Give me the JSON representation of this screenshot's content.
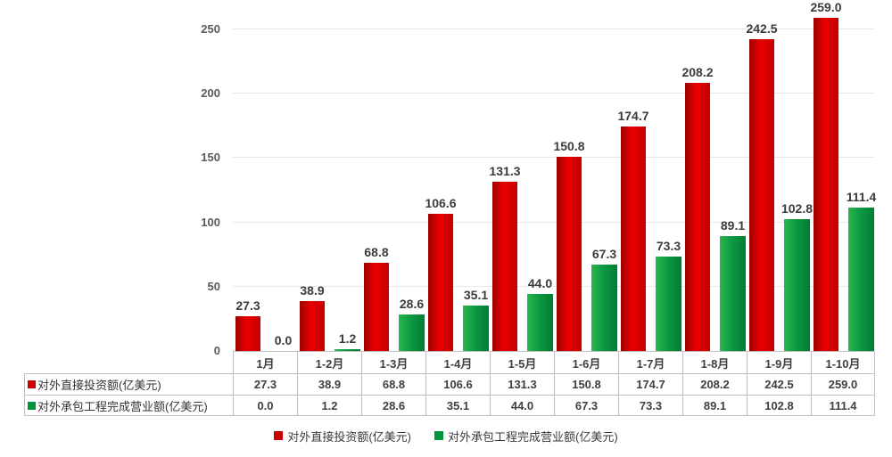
{
  "chart_data": {
    "type": "bar",
    "title": "",
    "xlabel": "",
    "ylabel": "",
    "categories": [
      "1月",
      "1-2月",
      "1-3月",
      "1-4月",
      "1-5月",
      "1-6月",
      "1-7月",
      "1-8月",
      "1-9月",
      "1-10月"
    ],
    "series": [
      {
        "name": "对外直接投资额(亿美元)",
        "values": [
          27.3,
          38.9,
          68.8,
          106.6,
          131.3,
          150.8,
          174.7,
          208.2,
          242.5,
          259.0
        ],
        "color": "#cf0000",
        "gradient": [
          "#9c0000",
          "#e90000",
          "#c20000"
        ]
      },
      {
        "name": "对外承包工程完成营业额(亿美元)",
        "values": [
          0.0,
          1.2,
          28.6,
          35.1,
          44.0,
          67.3,
          73.3,
          89.1,
          102.8,
          111.4
        ],
        "color": "#00963c",
        "gradient": [
          "#2db44e",
          "#0c9a43",
          "#007c32"
        ]
      }
    ],
    "ylim": [
      0,
      250
    ],
    "yticks": [
      0,
      50,
      100,
      150,
      200,
      250
    ],
    "grid": true,
    "data_labels": true,
    "value_decimals": 1,
    "legend_position": "bottom",
    "data_table": true
  },
  "style": {
    "gridline_color": "#e9e9e9",
    "table_border_color": "#bfbfbf",
    "tick_label_color": "#595959",
    "data_label_color": "#3b3b3b"
  }
}
